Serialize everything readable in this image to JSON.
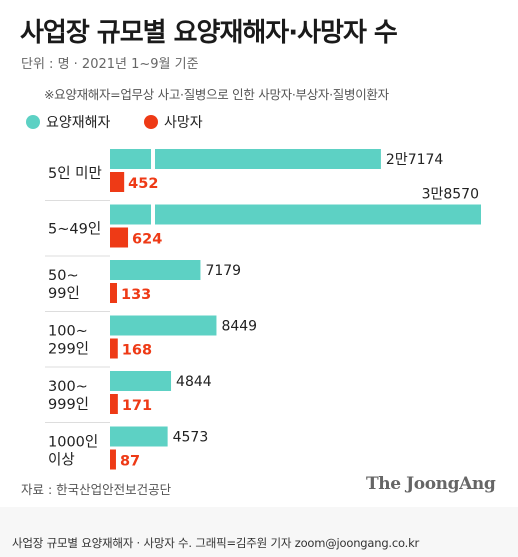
{
  "title": "사업장 규모별 요양재해자·사망자 수",
  "unit_note": "단위 : 명 · 2021년 1~9월 기준",
  "definition_note": "※요양재해자=업무상 사고·질병으로 인한 사망자·부상자·질병이환자",
  "source": "자료 : 한국산업안전보건공단",
  "brand": "The JoongAng",
  "credit": "사업장 규모별 요양재해자 · 사망자 수. 그래픽=김주원 기자 zoom@joongang.co.kr",
  "colors": {
    "injured": "#5dd1c4",
    "deaths": "#ee3a16"
  },
  "chart_data": {
    "type": "bar",
    "orientation": "horizontal",
    "title": "사업장 규모별 요양재해자·사망자 수",
    "unit": "명",
    "legend_position": "top-left",
    "categories": [
      [
        "5인 미만"
      ],
      [
        "5~49인"
      ],
      [
        "50~",
        "99인"
      ],
      [
        "100~",
        "299인"
      ],
      [
        "300~",
        "999인"
      ],
      [
        "1000인",
        "이상"
      ]
    ],
    "series": [
      {
        "name": "요양재해자",
        "values": [
          27174,
          38570,
          7179,
          8449,
          4844,
          4573
        ],
        "labels": [
          "2만7174",
          "3만8570",
          "7179",
          "8449",
          "4844",
          "4573"
        ]
      },
      {
        "name": "사망자",
        "values": [
          452,
          624,
          133,
          168,
          171,
          87
        ],
        "labels": [
          "452",
          "624",
          "133",
          "168",
          "171",
          "87"
        ]
      }
    ],
    "xlim": [
      0,
      38570
    ],
    "axis_break": true,
    "grid": false
  }
}
